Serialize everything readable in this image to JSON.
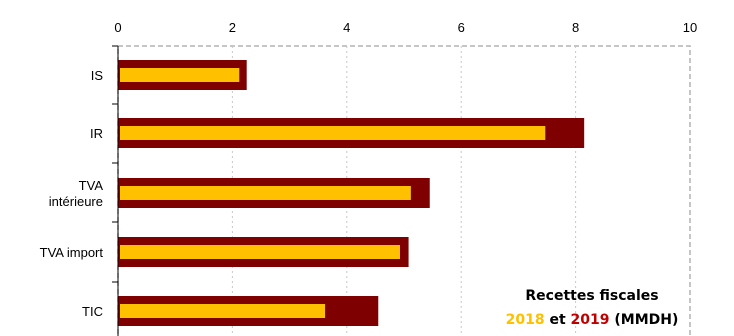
{
  "chart_data": {
    "type": "bar",
    "orientation": "horizontal",
    "xlim": [
      0,
      10
    ],
    "x_ticks": [
      "0",
      "2",
      "4",
      "6",
      "8",
      "10"
    ],
    "grid": "vertical dashed",
    "categories": [
      {
        "lines": [
          "IS"
        ]
      },
      {
        "lines": [
          "IR"
        ]
      },
      {
        "lines": [
          "TVA",
          "intérieure"
        ]
      },
      {
        "lines": [
          "TVA import"
        ]
      },
      {
        "lines": [
          "TIC"
        ]
      }
    ],
    "series": [
      {
        "name": "2019",
        "color": "#7f0000",
        "values": [
          2.25,
          8.15,
          5.45,
          5.08,
          4.55
        ]
      },
      {
        "name": "2018",
        "color": "#ffc000",
        "values": [
          2.12,
          7.47,
          5.12,
          4.93,
          3.62
        ]
      }
    ],
    "legend": {
      "title": "Recettes fiscales",
      "year_a": "2018",
      "connector": "et",
      "year_b": "2019",
      "unit": "(MMDH)",
      "year_a_color": "#ffc000",
      "year_b_color": "#c00000",
      "placement": "bottom-right"
    }
  }
}
